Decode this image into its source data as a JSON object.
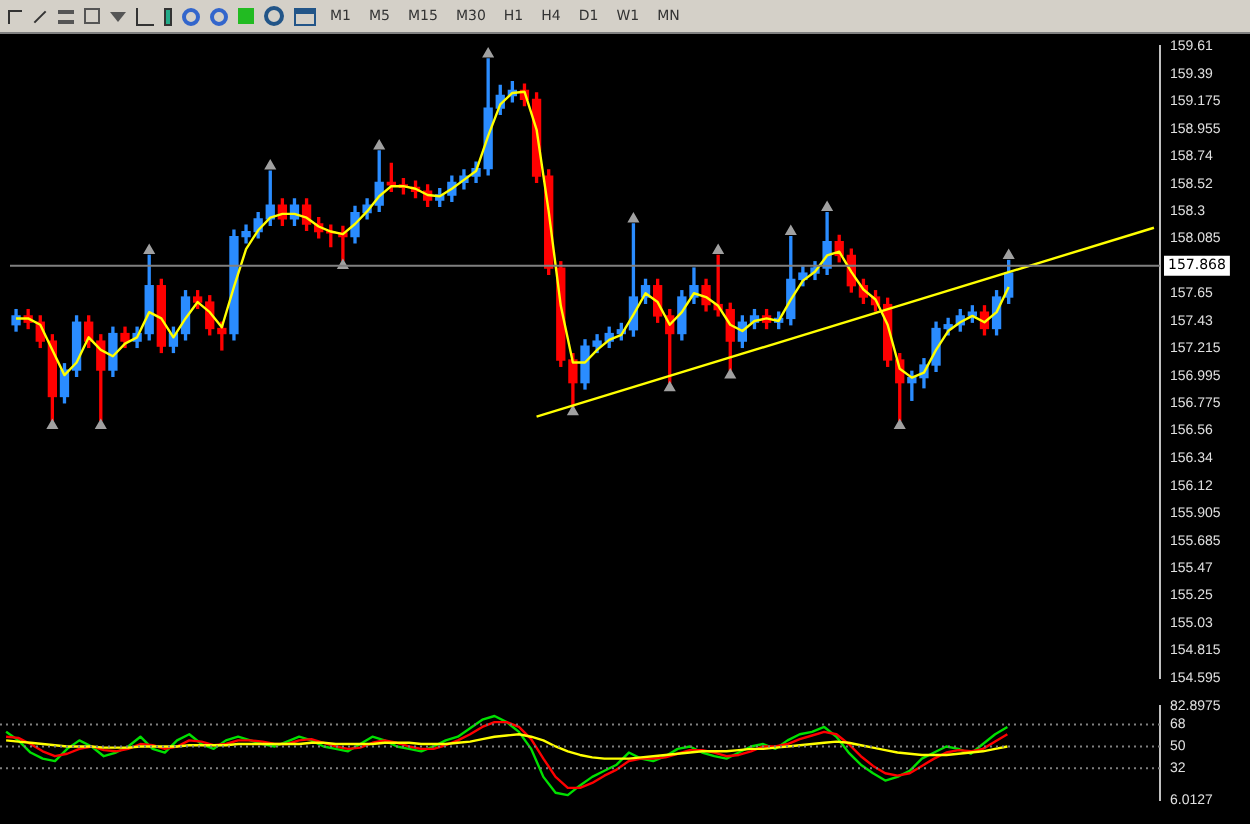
{
  "chart_data": [
    {
      "type": "other",
      "annotations": [
        "M1",
        "M5",
        "M15",
        "M30",
        "H1",
        "H4",
        "D1",
        "W1",
        "MN"
      ]
    },
    {
      "type": "candlestick",
      "tick_labels": "y",
      "grid": false,
      "legend": false,
      "categories": [
        null,
        null,
        null,
        null,
        null,
        null,
        null,
        null,
        null,
        null,
        null,
        null,
        null,
        null,
        null,
        null,
        null,
        null,
        null,
        null,
        null,
        null,
        null,
        null,
        null,
        null,
        null,
        null,
        null,
        null,
        null,
        null,
        null,
        null,
        null,
        null,
        null,
        null,
        null,
        null,
        null,
        null,
        null,
        null,
        null,
        null,
        null,
        null,
        null,
        null,
        null,
        null,
        null,
        null,
        null,
        null,
        null,
        null,
        null,
        null,
        null,
        null,
        null,
        null,
        null,
        null,
        null,
        null,
        null,
        null,
        null,
        null,
        null,
        null,
        null,
        null,
        null,
        null,
        null,
        null,
        null,
        null,
        null,
        null,
        null,
        null,
        null,
        null,
        null,
        null,
        null,
        null,
        null,
        null,
        null
      ],
      "ohlc": [
        [
          157.4,
          157.52,
          157.35,
          157.47
        ],
        [
          157.47,
          157.52,
          157.37,
          157.42
        ],
        [
          157.42,
          157.47,
          157.22,
          157.27
        ],
        [
          157.27,
          157.32,
          156.64,
          156.83
        ],
        [
          156.83,
          157.09,
          156.78,
          157.04
        ],
        [
          157.04,
          157.47,
          156.99,
          157.42
        ],
        [
          157.42,
          157.47,
          157.22,
          157.27
        ],
        [
          157.27,
          157.32,
          156.64,
          157.04
        ],
        [
          157.04,
          157.38,
          156.99,
          157.33
        ],
        [
          157.33,
          157.38,
          157.22,
          157.27
        ],
        [
          157.27,
          157.38,
          157.22,
          157.33
        ],
        [
          157.33,
          157.95,
          157.28,
          157.71
        ],
        [
          157.71,
          157.76,
          157.18,
          157.23
        ],
        [
          157.23,
          157.38,
          157.18,
          157.33
        ],
        [
          157.33,
          157.67,
          157.28,
          157.62
        ],
        [
          157.62,
          157.67,
          157.53,
          157.58
        ],
        [
          157.58,
          157.63,
          157.32,
          157.37
        ],
        [
          157.37,
          157.42,
          157.2,
          157.33
        ],
        [
          157.33,
          158.15,
          157.28,
          158.1
        ],
        [
          158.1,
          158.19,
          158.05,
          158.14
        ],
        [
          158.14,
          158.29,
          158.09,
          158.24
        ],
        [
          158.24,
          158.62,
          158.19,
          158.35
        ],
        [
          158.35,
          158.4,
          158.19,
          158.24
        ],
        [
          158.24,
          158.4,
          158.19,
          158.35
        ],
        [
          158.35,
          158.4,
          158.15,
          158.2
        ],
        [
          158.2,
          158.25,
          158.09,
          158.14
        ],
        [
          158.14,
          158.19,
          158.02,
          158.13
        ],
        [
          158.13,
          158.18,
          157.91,
          158.1
        ],
        [
          158.1,
          158.34,
          158.05,
          158.29
        ],
        [
          158.29,
          158.4,
          158.24,
          158.35
        ],
        [
          158.35,
          158.78,
          158.3,
          158.53
        ],
        [
          158.53,
          158.68,
          158.46,
          158.51
        ],
        [
          158.51,
          158.56,
          158.44,
          158.49
        ],
        [
          158.49,
          158.54,
          158.41,
          158.46
        ],
        [
          158.46,
          158.51,
          158.34,
          158.39
        ],
        [
          158.39,
          158.48,
          158.34,
          158.43
        ],
        [
          158.43,
          158.58,
          158.38,
          158.53
        ],
        [
          158.53,
          158.63,
          158.48,
          158.58
        ],
        [
          158.58,
          158.69,
          158.53,
          158.64
        ],
        [
          158.64,
          159.51,
          158.59,
          159.12
        ],
        [
          159.12,
          159.3,
          159.07,
          159.22
        ],
        [
          159.22,
          159.33,
          159.17,
          159.26
        ],
        [
          159.26,
          159.31,
          159.14,
          159.19
        ],
        [
          159.19,
          159.24,
          158.53,
          158.58
        ],
        [
          158.58,
          158.63,
          157.8,
          157.85
        ],
        [
          157.85,
          157.9,
          157.07,
          157.12
        ],
        [
          157.12,
          157.17,
          156.75,
          156.94
        ],
        [
          156.94,
          157.28,
          156.89,
          157.23
        ],
        [
          157.23,
          157.32,
          157.18,
          157.27
        ],
        [
          157.27,
          157.38,
          157.22,
          157.33
        ],
        [
          157.33,
          157.41,
          157.28,
          157.36
        ],
        [
          157.36,
          158.2,
          157.31,
          157.62
        ],
        [
          157.62,
          157.76,
          157.57,
          157.71
        ],
        [
          157.71,
          157.76,
          157.42,
          157.47
        ],
        [
          157.47,
          157.52,
          156.94,
          157.33
        ],
        [
          157.33,
          157.67,
          157.28,
          157.62
        ],
        [
          157.62,
          157.85,
          157.57,
          157.71
        ],
        [
          157.71,
          157.76,
          157.51,
          157.56
        ],
        [
          157.56,
          157.95,
          157.47,
          157.52
        ],
        [
          157.52,
          157.57,
          157.04,
          157.27
        ],
        [
          157.27,
          157.47,
          157.22,
          157.42
        ],
        [
          157.42,
          157.52,
          157.37,
          157.47
        ],
        [
          157.47,
          157.52,
          157.37,
          157.42
        ],
        [
          157.42,
          157.5,
          157.37,
          157.45
        ],
        [
          157.45,
          158.1,
          157.4,
          157.76
        ],
        [
          157.76,
          157.86,
          157.71,
          157.81
        ],
        [
          157.81,
          157.9,
          157.76,
          157.85
        ],
        [
          157.85,
          158.29,
          157.8,
          158.06
        ],
        [
          158.06,
          158.11,
          157.9,
          157.95
        ],
        [
          157.95,
          158.0,
          157.66,
          157.71
        ],
        [
          157.71,
          157.76,
          157.57,
          157.62
        ],
        [
          157.62,
          157.67,
          157.51,
          157.56
        ],
        [
          157.56,
          157.61,
          157.07,
          157.12
        ],
        [
          157.12,
          157.17,
          156.64,
          156.94
        ],
        [
          156.94,
          157.03,
          156.8,
          156.98
        ],
        [
          156.98,
          157.13,
          156.9,
          157.08
        ],
        [
          157.08,
          157.42,
          157.03,
          157.37
        ],
        [
          157.37,
          157.45,
          157.32,
          157.4
        ],
        [
          157.4,
          157.52,
          157.35,
          157.47
        ],
        [
          157.47,
          157.55,
          157.42,
          157.5
        ],
        [
          157.5,
          157.55,
          157.32,
          157.37
        ],
        [
          157.37,
          157.67,
          157.32,
          157.62
        ],
        [
          157.62,
          157.91,
          157.57,
          157.81
        ],
        null,
        null,
        null,
        null,
        null,
        null,
        null,
        null,
        null,
        null,
        null,
        null
      ],
      "colors": [
        "#2a8cff",
        "#ff0000",
        "#ff0000",
        "#ff0000",
        "#2a8cff",
        "#2a8cff",
        "#ff0000",
        "#ff0000",
        "#2a8cff",
        "#ff0000",
        "#2a8cff",
        "#2a8cff",
        "#ff0000",
        "#2a8cff",
        "#2a8cff",
        "#ff0000",
        "#ff0000",
        "#ff0000",
        "#2a8cff",
        "#2a8cff",
        "#2a8cff",
        "#2a8cff",
        "#ff0000",
        "#2a8cff",
        "#ff0000",
        "#ff0000",
        "#ff0000",
        "#ff0000",
        "#2a8cff",
        "#2a8cff",
        "#2a8cff",
        "#ff0000",
        "#ff0000",
        "#ff0000",
        "#ff0000",
        "#2a8cff",
        "#2a8cff",
        "#2a8cff",
        "#2a8cff",
        "#2a8cff",
        "#2a8cff",
        "#2a8cff",
        "#ff0000",
        "#ff0000",
        "#ff0000",
        "#ff0000",
        "#ff0000",
        "#2a8cff",
        "#2a8cff",
        "#2a8cff",
        "#2a8cff",
        "#2a8cff",
        "#2a8cff",
        "#ff0000",
        "#ff0000",
        "#2a8cff",
        "#2a8cff",
        "#ff0000",
        "#ff0000",
        "#ff0000",
        "#2a8cff",
        "#2a8cff",
        "#ff0000",
        "#2a8cff",
        "#2a8cff",
        "#2a8cff",
        "#2a8cff",
        "#2a8cff",
        "#ff0000",
        "#ff0000",
        "#ff0000",
        "#ff0000",
        "#ff0000",
        "#ff0000",
        "#2a8cff",
        "#2a8cff",
        "#2a8cff",
        "#2a8cff",
        "#2a8cff",
        "#2a8cff",
        "#ff0000",
        "#2a8cff",
        "#2a8cff",
        null,
        null,
        null,
        null,
        null,
        null,
        null,
        null,
        null,
        null,
        null,
        null
      ],
      "series": [
        {
          "type": "line",
          "color": "#ffff00",
          "values": [
            157.45,
            157.45,
            157.4,
            157.2,
            157.0,
            157.1,
            157.3,
            157.2,
            157.15,
            157.25,
            157.3,
            157.5,
            157.45,
            157.3,
            157.45,
            157.58,
            157.5,
            157.38,
            157.7,
            158.0,
            158.15,
            158.25,
            158.28,
            158.28,
            158.25,
            158.18,
            158.14,
            158.12,
            158.2,
            158.3,
            158.42,
            158.5,
            158.5,
            158.48,
            158.43,
            158.42,
            158.48,
            158.55,
            158.62,
            158.9,
            159.15,
            159.24,
            159.25,
            158.95,
            158.3,
            157.55,
            157.1,
            157.1,
            157.2,
            157.28,
            157.32,
            157.48,
            157.65,
            157.58,
            157.4,
            157.5,
            157.65,
            157.62,
            157.55,
            157.4,
            157.35,
            157.43,
            157.45,
            157.43,
            157.6,
            157.75,
            157.82,
            157.95,
            157.98,
            157.82,
            157.68,
            157.6,
            157.4,
            157.05,
            156.98,
            157.02,
            157.2,
            157.35,
            157.42,
            157.47,
            157.42,
            157.5,
            157.7,
            null,
            null,
            null,
            null,
            null,
            null,
            null,
            null,
            null,
            null,
            null,
            null
          ]
        },
        {
          "type": "line",
          "color": "#ffff00",
          "values": [
            null,
            null,
            null,
            null,
            null,
            null,
            null,
            null,
            null,
            null,
            null,
            null,
            null,
            null,
            null,
            null,
            null,
            null,
            null,
            null,
            null,
            null,
            null,
            null,
            null,
            null,
            null,
            null,
            null,
            null,
            null,
            null,
            null,
            null,
            null,
            null,
            null,
            null,
            null,
            null,
            null,
            null,
            null,
            156.67,
            null,
            null,
            null,
            null,
            null,
            null,
            null,
            null,
            null,
            null,
            null,
            null,
            null,
            null,
            null,
            null,
            null,
            null,
            null,
            null,
            null,
            null,
            null,
            null,
            null,
            null,
            null,
            null,
            null,
            null,
            null,
            null,
            null,
            null,
            null,
            null,
            null,
            null,
            null,
            null,
            null,
            null,
            null,
            null,
            null,
            null,
            null,
            null,
            null,
            null,
            158.17
          ]
        },
        {
          "type": "scatter",
          "color": "#a0a0a0",
          "marker": "triangle",
          "values": [
            null,
            null,
            null,
            null,
            null,
            null,
            null,
            null,
            null,
            null,
            null,
            157.99,
            null,
            null,
            null,
            null,
            null,
            null,
            null,
            null,
            null,
            158.66,
            null,
            null,
            null,
            null,
            null,
            null,
            null,
            null,
            158.82,
            null,
            null,
            null,
            null,
            null,
            null,
            null,
            null,
            159.55,
            null,
            null,
            null,
            null,
            null,
            null,
            null,
            null,
            null,
            null,
            null,
            158.24,
            null,
            null,
            null,
            null,
            null,
            null,
            157.99,
            null,
            null,
            null,
            null,
            null,
            158.14,
            null,
            null,
            158.33,
            null,
            null,
            null,
            null,
            null,
            null,
            null,
            null,
            null,
            null,
            null,
            null,
            null,
            null,
            157.95,
            null,
            null,
            null,
            null,
            null,
            null,
            null,
            null,
            null,
            null,
            null,
            null
          ]
        },
        {
          "type": "scatter",
          "color": "#a0a0a0",
          "marker": "triangle",
          "values": [
            null,
            null,
            null,
            156.6,
            null,
            null,
            null,
            156.6,
            null,
            null,
            null,
            null,
            null,
            null,
            null,
            null,
            null,
            null,
            null,
            null,
            null,
            null,
            null,
            null,
            null,
            null,
            null,
            157.87,
            null,
            null,
            null,
            null,
            null,
            null,
            null,
            null,
            null,
            null,
            null,
            null,
            null,
            null,
            null,
            null,
            null,
            null,
            156.71,
            null,
            null,
            null,
            null,
            null,
            null,
            null,
            156.9,
            null,
            null,
            null,
            null,
            157.0,
            null,
            null,
            null,
            null,
            null,
            null,
            null,
            null,
            null,
            null,
            null,
            null,
            null,
            156.6,
            null,
            null,
            null,
            null,
            null,
            null,
            null,
            null,
            null,
            null,
            null,
            null,
            null,
            null,
            null,
            null,
            null,
            null,
            null,
            null,
            null
          ]
        }
      ],
      "ylim": [
        154.595,
        159.61
      ],
      "yticks": [
        159.61,
        159.39,
        159.175,
        158.955,
        158.74,
        158.52,
        158.3,
        158.085,
        157.65,
        157.43,
        157.215,
        156.995,
        156.775,
        156.56,
        156.34,
        156.12,
        155.905,
        155.685,
        155.47,
        155.25,
        155.03,
        154.815,
        154.595
      ],
      "ref_lines": [
        {
          "axis": "y",
          "value": 157.868,
          "label": "157.868",
          "color": "#808080"
        }
      ]
    },
    {
      "type": "line",
      "tick_labels": "y",
      "grid": false,
      "legend": false,
      "categories": [
        null,
        null,
        null,
        null,
        null,
        null,
        null,
        null,
        null,
        null,
        null,
        null,
        null,
        null,
        null,
        null,
        null,
        null,
        null,
        null,
        null,
        null,
        null,
        null,
        null,
        null,
        null,
        null,
        null,
        null,
        null,
        null,
        null,
        null,
        null,
        null,
        null,
        null,
        null,
        null,
        null,
        null,
        null,
        null,
        null,
        null,
        null,
        null,
        null,
        null,
        null,
        null,
        null,
        null,
        null,
        null,
        null,
        null,
        null,
        null,
        null,
        null,
        null,
        null,
        null,
        null,
        null,
        null,
        null,
        null,
        null,
        null,
        null,
        null,
        null,
        null,
        null,
        null,
        null,
        null,
        null,
        null,
        null,
        null,
        null,
        null,
        null,
        null,
        null,
        null,
        null,
        null,
        null,
        null,
        null
      ],
      "series": [
        {
          "color": "#ffff00",
          "values": [
            55,
            54,
            53,
            52,
            51,
            50,
            50,
            50,
            49,
            49,
            49,
            50,
            50,
            50,
            50,
            51,
            51,
            51,
            51,
            52,
            52,
            52,
            52,
            52,
            52,
            53,
            53,
            52,
            52,
            52,
            52,
            53,
            53,
            53,
            52,
            52,
            52,
            53,
            54,
            56,
            58,
            59,
            60,
            58,
            55,
            50,
            46,
            43,
            41,
            40,
            40,
            40,
            41,
            42,
            43,
            44,
            45,
            46,
            46,
            46,
            47,
            48,
            48,
            49,
            50,
            51,
            52,
            53,
            54,
            53,
            51,
            49,
            47,
            45,
            44,
            43,
            43,
            43,
            44,
            45,
            46,
            48,
            50,
            null,
            null,
            null,
            null,
            null,
            null,
            null,
            null,
            null,
            null,
            null,
            null
          ]
        },
        {
          "color": "#ff0000",
          "values": [
            58,
            57,
            52,
            46,
            42,
            44,
            48,
            50,
            47,
            46,
            48,
            52,
            51,
            48,
            50,
            55,
            54,
            51,
            52,
            55,
            55,
            54,
            52,
            52,
            55,
            56,
            53,
            50,
            48,
            49,
            53,
            55,
            53,
            50,
            48,
            48,
            51,
            55,
            60,
            66,
            70,
            70,
            66,
            56,
            40,
            25,
            16,
            16,
            20,
            26,
            31,
            38,
            40,
            40,
            41,
            44,
            47,
            47,
            45,
            42,
            43,
            46,
            50,
            50,
            52,
            56,
            59,
            62,
            60,
            52,
            42,
            34,
            28,
            26,
            28,
            34,
            40,
            45,
            47,
            46,
            48,
            54,
            60,
            null,
            null,
            null,
            null,
            null,
            null,
            null,
            null,
            null,
            null,
            null,
            null
          ]
        },
        {
          "color": "#00e000",
          "values": [
            62,
            55,
            45,
            40,
            38,
            48,
            55,
            50,
            42,
            45,
            50,
            58,
            48,
            45,
            55,
            60,
            52,
            48,
            55,
            58,
            55,
            52,
            50,
            54,
            58,
            55,
            50,
            48,
            46,
            52,
            58,
            55,
            50,
            48,
            46,
            50,
            55,
            58,
            65,
            72,
            75,
            70,
            62,
            48,
            25,
            12,
            10,
            18,
            25,
            30,
            35,
            45,
            40,
            38,
            42,
            48,
            50,
            45,
            42,
            40,
            45,
            50,
            52,
            48,
            55,
            60,
            62,
            66,
            58,
            45,
            35,
            28,
            22,
            25,
            30,
            40,
            45,
            50,
            48,
            44,
            52,
            60,
            66,
            null,
            null,
            null,
            null,
            null,
            null,
            null,
            null,
            null,
            null,
            null,
            null
          ]
        }
      ],
      "ylim": [
        6.0127,
        82.8975
      ],
      "yticks": [
        82.8975,
        68,
        50,
        32,
        6.0127
      ],
      "ref_lines": [
        {
          "axis": "y",
          "value": 68,
          "color": "#808080",
          "line_style": "dotted"
        },
        {
          "axis": "y",
          "value": 50,
          "color": "#808080",
          "line_style": "dotted"
        },
        {
          "axis": "y",
          "value": 32,
          "color": "#808080",
          "line_style": "dotted"
        }
      ]
    }
  ]
}
